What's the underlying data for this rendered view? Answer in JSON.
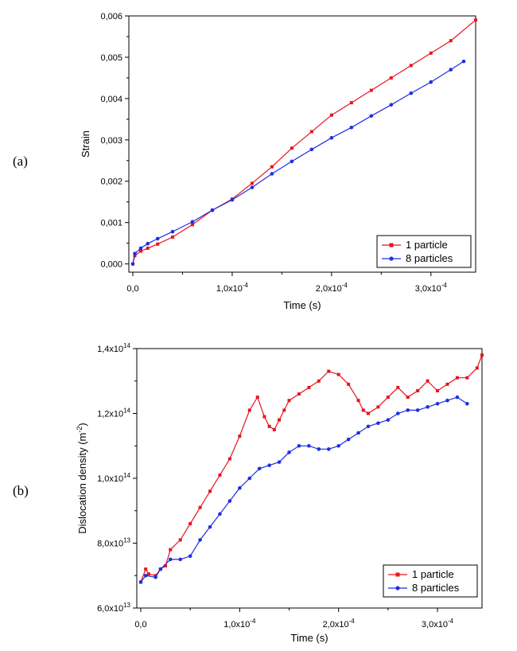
{
  "chart_data": [
    {
      "type": "line",
      "panel_label": "(a)",
      "xlabel": "Time (s)",
      "ylabel": "Strain",
      "xlim": [
        -4e-06,
        0.000345
      ],
      "ylim": [
        -0.0002,
        0.006
      ],
      "xticks": [
        {
          "value": 0,
          "mant": "0,0",
          "exp": ""
        },
        {
          "value": 0.0001,
          "mant": "1,0x10",
          "exp": "-4"
        },
        {
          "value": 0.0002,
          "mant": "2,0x10",
          "exp": "-4"
        },
        {
          "value": 0.0003,
          "mant": "3,0x10",
          "exp": "-4"
        }
      ],
      "yticks": [
        {
          "value": 0,
          "mant": "0,000",
          "exp": ""
        },
        {
          "value": 0.001,
          "mant": "0,001",
          "exp": ""
        },
        {
          "value": 0.002,
          "mant": "0,002",
          "exp": ""
        },
        {
          "value": 0.003,
          "mant": "0,003",
          "exp": ""
        },
        {
          "value": 0.004,
          "mant": "0,004",
          "exp": ""
        },
        {
          "value": 0.005,
          "mant": "0,005",
          "exp": ""
        },
        {
          "value": 0.006,
          "mant": "0,006",
          "exp": ""
        }
      ],
      "legend_position": "bottom-right",
      "series": [
        {
          "name": "1 particle",
          "color": "#e8141e",
          "marker": "square",
          "x": [
            0,
            2e-06,
            8e-06,
            1.5e-05,
            2.5e-05,
            4e-05,
            6e-05,
            8e-05,
            0.0001,
            0.00012,
            0.00014,
            0.00016,
            0.00018,
            0.0002,
            0.00022,
            0.00024,
            0.00026,
            0.00028,
            0.0003,
            0.00032,
            0.000345
          ],
          "y": [
            0,
            0.0002,
            0.00031,
            0.00038,
            0.00048,
            0.00065,
            0.00095,
            0.0013,
            0.00157,
            0.00195,
            0.00235,
            0.0028,
            0.0032,
            0.0036,
            0.0039,
            0.0042,
            0.0045,
            0.0048,
            0.0051,
            0.0054,
            0.0059
          ]
        },
        {
          "name": "8 particles",
          "color": "#1f2fe0",
          "marker": "circle",
          "x": [
            0,
            2e-06,
            8e-06,
            1.5e-05,
            2.5e-05,
            4e-05,
            6e-05,
            8e-05,
            0.0001,
            0.00012,
            0.00014,
            0.00016,
            0.00018,
            0.0002,
            0.00022,
            0.00024,
            0.00026,
            0.00028,
            0.0003,
            0.00032,
            0.000333
          ],
          "y": [
            0,
            0.00025,
            0.00038,
            0.00049,
            0.00061,
            0.00078,
            0.00102,
            0.0013,
            0.00155,
            0.00185,
            0.00218,
            0.00248,
            0.00277,
            0.00305,
            0.0033,
            0.00358,
            0.00385,
            0.00413,
            0.0044,
            0.0047,
            0.0049
          ]
        }
      ]
    },
    {
      "type": "line",
      "panel_label": "(b)",
      "xlabel": "Time (s)",
      "ylabel": "Dislocation density (m⁻²)",
      "ylabel_main": "Dislocation density (m",
      "ylabel_exp": "-2",
      "ylabel_end": ")",
      "xlim": [
        -4e-06,
        0.000345
      ],
      "ylim": [
        60000000000000.0,
        140000000000000.0
      ],
      "xticks": [
        {
          "value": 0,
          "mant": "0,0",
          "exp": ""
        },
        {
          "value": 0.0001,
          "mant": "1,0x10",
          "exp": "-4"
        },
        {
          "value": 0.0002,
          "mant": "2,0x10",
          "exp": "-4"
        },
        {
          "value": 0.0003,
          "mant": "3,0x10",
          "exp": "-4"
        }
      ],
      "yticks": [
        {
          "value": 60000000000000.0,
          "mant": "6,0x10",
          "exp": "13"
        },
        {
          "value": 80000000000000.0,
          "mant": "8,0x10",
          "exp": "13"
        },
        {
          "value": 100000000000000.0,
          "mant": "1,0x10",
          "exp": "14"
        },
        {
          "value": 120000000000000.0,
          "mant": "1,2x10",
          "exp": "14"
        },
        {
          "value": 140000000000000.0,
          "mant": "1,4x10",
          "exp": "14"
        }
      ],
      "legend_position": "bottom-right",
      "series": [
        {
          "name": "1 particle",
          "color": "#e8141e",
          "marker": "square",
          "x": [
            0,
            5e-06,
            8e-06,
            1.5e-05,
            2e-05,
            2.5e-05,
            3e-05,
            4e-05,
            5e-05,
            6e-05,
            7e-05,
            8e-05,
            9e-05,
            0.0001,
            0.00011,
            0.000118,
            0.000125,
            0.00013,
            0.000135,
            0.00014,
            0.000145,
            0.00015,
            0.00016,
            0.00017,
            0.00018,
            0.00019,
            0.0002,
            0.00021,
            0.00022,
            0.000225,
            0.00023,
            0.00024,
            0.00025,
            0.00026,
            0.00027,
            0.00028,
            0.00029,
            0.0003,
            0.00031,
            0.00032,
            0.00033,
            0.00034,
            0.000345
          ],
          "y": [
            68000000000000.0,
            72000000000000.0,
            70500000000000.0,
            70000000000000.0,
            72000000000000.0,
            73000000000000.0,
            78000000000000.0,
            81000000000000.0,
            86000000000000.0,
            91000000000000.0,
            96000000000000.0,
            101000000000000.0,
            106000000000000.0,
            113000000000000.0,
            121000000000000.0,
            125000000000000.0,
            119000000000000.0,
            116000000000000.0,
            115000000000000.0,
            118000000000000.0,
            121000000000000.0,
            124000000000000.0,
            126000000000000.0,
            128000000000000.0,
            130000000000000.0,
            133000000000000.0,
            132000000000000.0,
            129000000000000.0,
            124000000000000.0,
            121000000000000.0,
            120000000000000.0,
            122000000000000.0,
            125000000000000.0,
            128000000000000.0,
            125000000000000.0,
            127000000000000.0,
            130000000000000.0,
            127000000000000.0,
            129000000000000.0,
            131000000000000.0,
            131000000000000.0,
            134000000000000.0,
            138000000000000.0
          ]
        },
        {
          "name": "8 particles",
          "color": "#1f2fe0",
          "marker": "circle",
          "x": [
            0,
            5e-06,
            1.5e-05,
            2e-05,
            3e-05,
            4e-05,
            5e-05,
            6e-05,
            7e-05,
            8e-05,
            9e-05,
            0.0001,
            0.00011,
            0.00012,
            0.00013,
            0.00014,
            0.00015,
            0.00016,
            0.00017,
            0.00018,
            0.00019,
            0.0002,
            0.00021,
            0.00022,
            0.00023,
            0.00024,
            0.00025,
            0.00026,
            0.00027,
            0.00028,
            0.00029,
            0.0003,
            0.00031,
            0.00032,
            0.00033
          ],
          "y": [
            68000000000000.0,
            70000000000000.0,
            69500000000000.0,
            72000000000000.0,
            75000000000000.0,
            75000000000000.0,
            76000000000000.0,
            81000000000000.0,
            85000000000000.0,
            89000000000000.0,
            93000000000000.0,
            97000000000000.0,
            100000000000000.0,
            103000000000000.0,
            104000000000000.0,
            105000000000000.0,
            108000000000000.0,
            110000000000000.0,
            110000000000000.0,
            109000000000000.0,
            109000000000000.0,
            110000000000000.0,
            112000000000000.0,
            114000000000000.0,
            116000000000000.0,
            117000000000000.0,
            118000000000000.0,
            120000000000000.0,
            121000000000000.0,
            121000000000000.0,
            122000000000000.0,
            123000000000000.0,
            124000000000000.0,
            125000000000000.0,
            123000000000000.0
          ]
        }
      ]
    }
  ]
}
